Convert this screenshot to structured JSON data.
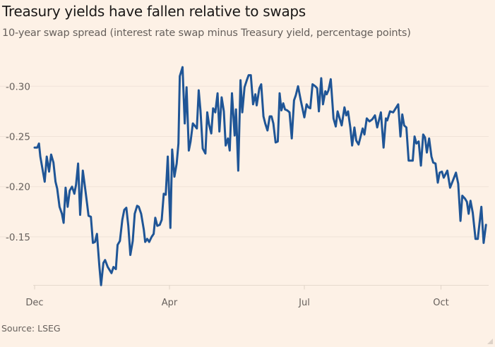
{
  "chart_data": {
    "type": "line",
    "title": "Treasury yields have fallen relative to swaps",
    "subtitle": "10-year swap spread (interest rate swap minus Treasury yield, percentage points)",
    "source": "Source: LSEG",
    "xlabel": "",
    "ylabel": "",
    "x_units": "months since start of December",
    "x_ticks": [
      {
        "value": 0,
        "label": "Dec"
      },
      {
        "value": 4,
        "label": "Apr"
      },
      {
        "value": 7,
        "label": "Jul"
      },
      {
        "value": 10,
        "label": "Oct"
      }
    ],
    "y_ticks": [
      {
        "value": -0.3,
        "label": "-0.30"
      },
      {
        "value": -0.25,
        "label": "-0.25"
      },
      {
        "value": -0.2,
        "label": "-0.20"
      },
      {
        "value": -0.15,
        "label": "-0.15"
      }
    ],
    "ylim": [
      -0.1,
      -0.325
    ],
    "y_inverted": true,
    "grid": true,
    "series": [
      {
        "name": "10-year swap spread",
        "color": "#1f5596",
        "x": [
          0,
          0.08,
          0.13,
          0.17,
          0.3,
          0.36,
          0.43,
          0.49,
          0.56,
          0.62,
          0.67,
          0.74,
          0.81,
          0.86,
          0.92,
          0.98,
          1.04,
          1.11,
          1.18,
          1.23,
          1.29,
          1.35,
          1.43,
          1.49,
          1.56,
          1.6,
          1.67,
          1.73,
          1.79,
          1.85,
          1.92,
          1.97,
          2.04,
          2.09,
          2.17,
          2.28,
          2.34,
          2.41,
          2.46,
          2.53,
          2.6,
          2.66,
          2.72,
          2.78,
          2.84,
          2.91,
          2.97,
          3.04,
          3.09,
          3.16,
          3.24,
          3.28,
          3.34,
          3.4,
          3.47,
          3.53,
          3.58,
          3.64,
          3.71,
          3.77,
          3.83,
          3.89,
          3.95,
          4.02,
          4.06,
          4.11,
          4.16,
          4.2,
          4.23,
          4.29,
          4.34,
          4.38,
          4.43,
          4.47,
          4.52,
          4.61,
          4.65,
          4.69,
          4.74,
          4.8,
          4.84,
          4.88,
          4.93,
          4.97,
          5.02,
          5.07,
          5.11,
          5.16,
          5.21,
          5.25,
          5.3,
          5.34,
          5.39,
          5.45,
          5.48,
          5.53,
          5.58,
          5.62,
          5.67,
          5.72,
          5.76,
          5.81,
          5.86,
          5.91,
          5.94,
          6.0,
          6.04,
          6.09,
          6.13,
          6.18,
          6.23,
          6.27,
          6.31,
          6.36,
          6.41,
          6.45,
          6.49,
          6.53,
          6.57,
          6.62,
          6.67,
          6.72,
          6.77,
          6.81,
          6.86,
          6.92,
          7.0,
          7.05,
          7.09,
          7.13,
          7.18,
          7.24,
          7.28,
          7.32,
          7.37,
          7.41,
          7.46,
          7.49,
          7.53,
          7.58,
          7.64,
          7.69,
          7.73,
          7.82,
          7.88,
          7.92,
          7.96,
          8.01,
          8.05,
          8.1,
          8.14,
          8.19,
          8.28,
          8.32,
          8.37,
          8.43,
          8.49,
          8.55,
          8.6,
          8.68,
          8.74,
          8.79,
          8.82,
          8.88,
          8.95,
          9.06,
          9.11,
          9.15,
          9.19,
          9.24,
          9.29,
          9.38,
          9.42,
          9.46,
          9.51,
          9.56,
          9.61,
          9.65,
          9.69,
          9.74,
          9.79,
          9.83,
          9.88,
          9.93,
          9.97,
          10.02,
          10.06,
          10.14,
          10.2,
          10.27,
          10.33,
          10.38,
          10.43,
          10.47,
          10.53,
          10.57,
          10.61,
          10.65,
          10.7,
          10.76,
          10.81,
          10.89,
          10.94,
          10.99
        ],
        "y": [
          -0.239,
          -0.239,
          -0.243,
          -0.23,
          -0.205,
          -0.23,
          -0.215,
          -0.232,
          -0.224,
          -0.205,
          -0.198,
          -0.18,
          -0.173,
          -0.164,
          -0.199,
          -0.18,
          -0.196,
          -0.2,
          -0.193,
          -0.202,
          -0.223,
          -0.172,
          -0.216,
          -0.201,
          -0.182,
          -0.171,
          -0.17,
          -0.144,
          -0.145,
          -0.153,
          -0.121,
          -0.102,
          -0.124,
          -0.127,
          -0.12,
          -0.114,
          -0.12,
          -0.118,
          -0.142,
          -0.146,
          -0.167,
          -0.177,
          -0.179,
          -0.161,
          -0.132,
          -0.146,
          -0.173,
          -0.181,
          -0.18,
          -0.173,
          -0.157,
          -0.145,
          -0.148,
          -0.145,
          -0.15,
          -0.153,
          -0.169,
          -0.161,
          -0.162,
          -0.167,
          -0.193,
          -0.192,
          -0.23,
          -0.159,
          -0.237,
          -0.21,
          -0.223,
          -0.243,
          -0.31,
          -0.319,
          -0.263,
          -0.299,
          -0.236,
          -0.245,
          -0.263,
          -0.258,
          -0.296,
          -0.276,
          -0.238,
          -0.233,
          -0.274,
          -0.262,
          -0.253,
          -0.278,
          -0.274,
          -0.293,
          -0.255,
          -0.289,
          -0.275,
          -0.241,
          -0.248,
          -0.236,
          -0.293,
          -0.251,
          -0.277,
          -0.216,
          -0.306,
          -0.274,
          -0.299,
          -0.306,
          -0.311,
          -0.311,
          -0.282,
          -0.292,
          -0.281,
          -0.298,
          -0.302,
          -0.27,
          -0.263,
          -0.256,
          -0.27,
          -0.27,
          -0.263,
          -0.244,
          -0.245,
          -0.293,
          -0.276,
          -0.283,
          -0.277,
          -0.276,
          -0.274,
          -0.248,
          -0.286,
          -0.291,
          -0.3,
          -0.286,
          -0.269,
          -0.282,
          -0.279,
          -0.278,
          -0.302,
          -0.3,
          -0.298,
          -0.275,
          -0.308,
          -0.282,
          -0.295,
          -0.292,
          -0.296,
          -0.307,
          -0.268,
          -0.26,
          -0.275,
          -0.261,
          -0.279,
          -0.271,
          -0.275,
          -0.259,
          -0.241,
          -0.259,
          -0.246,
          -0.242,
          -0.258,
          -0.252,
          -0.268,
          -0.265,
          -0.267,
          -0.271,
          -0.259,
          -0.274,
          -0.239,
          -0.268,
          -0.266,
          -0.275,
          -0.274,
          -0.282,
          -0.25,
          -0.272,
          -0.261,
          -0.259,
          -0.226,
          -0.226,
          -0.25,
          -0.243,
          -0.245,
          -0.221,
          -0.252,
          -0.249,
          -0.234,
          -0.248,
          -0.23,
          -0.224,
          -0.223,
          -0.204,
          -0.214,
          -0.215,
          -0.209,
          -0.216,
          -0.199,
          -0.207,
          -0.214,
          -0.203,
          -0.166,
          -0.191,
          -0.188,
          -0.185,
          -0.173,
          -0.186,
          -0.174,
          -0.148,
          -0.148,
          -0.18,
          -0.144,
          -0.162
        ]
      }
    ]
  }
}
